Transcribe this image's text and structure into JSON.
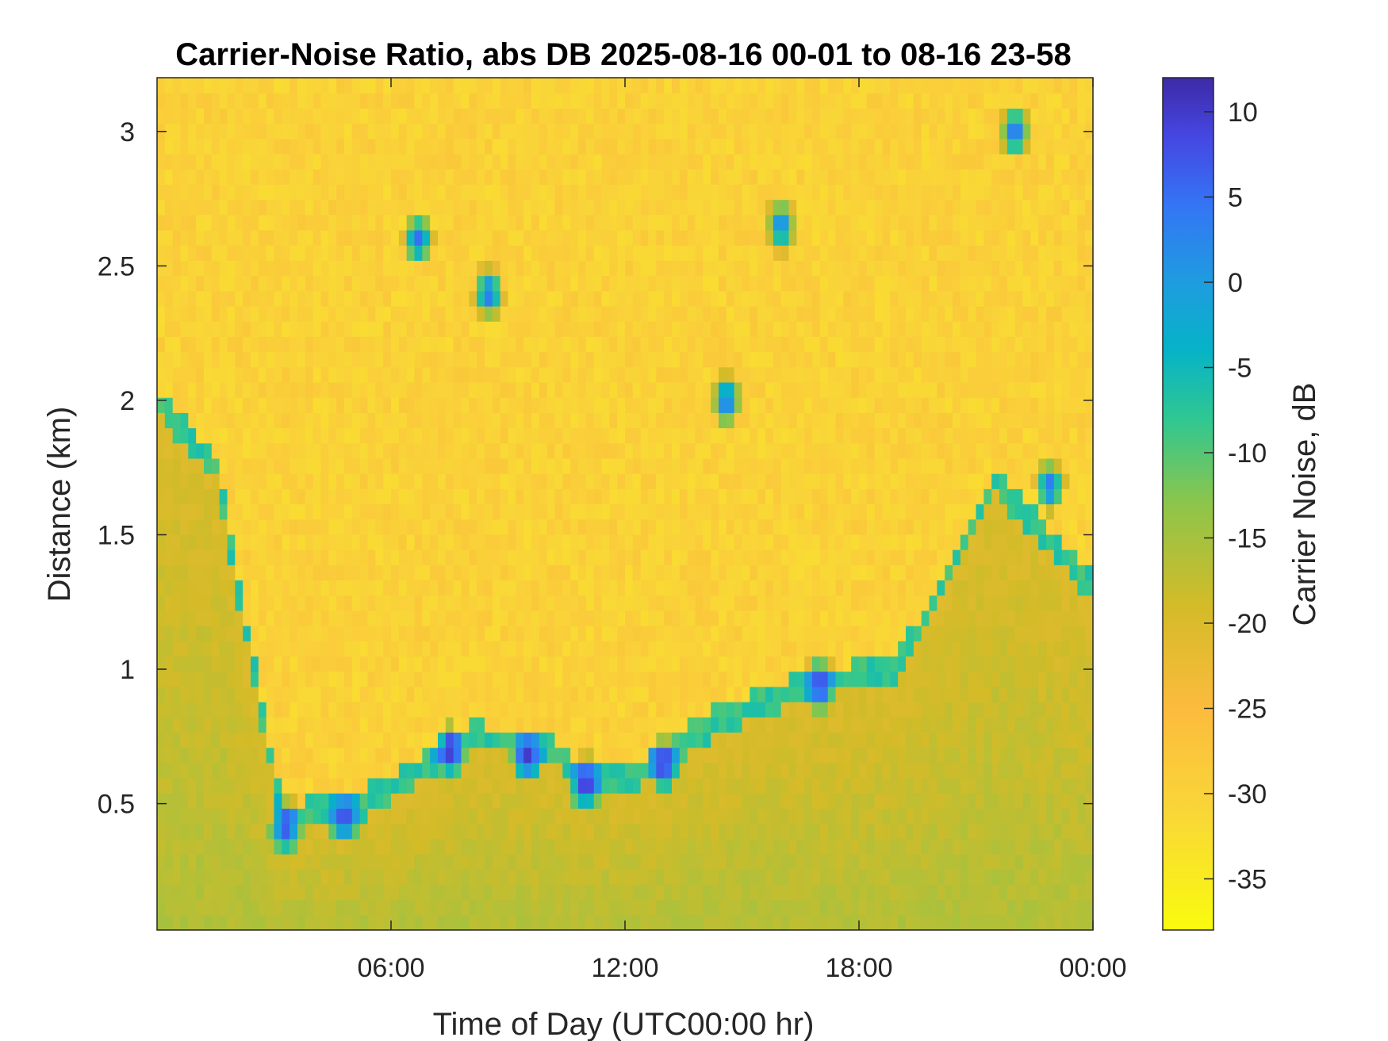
{
  "chart_data": {
    "type": "heatmap",
    "title": "Carrier-Noise Ratio, abs DB 2025-08-16 00-01 to 08-16 23-58",
    "xlabel": "Time of Day (UTC00:00 hr)",
    "ylabel": "Distance (km)",
    "colorbar_label": "Carrier Noise, dB",
    "xlim_hours": [
      0,
      24
    ],
    "ylim_km": [
      0.03,
      3.2
    ],
    "clim_db": [
      -38,
      12
    ],
    "x_ticks": [
      {
        "hour": 6,
        "label": "06:00"
      },
      {
        "hour": 12,
        "label": "12:00"
      },
      {
        "hour": 18,
        "label": "18:00"
      },
      {
        "hour": 24,
        "label": "00:00"
      }
    ],
    "y_ticks": [
      {
        "value": 0.5,
        "label": "0.5"
      },
      {
        "value": 1,
        "label": "1"
      },
      {
        "value": 1.5,
        "label": "1.5"
      },
      {
        "value": 2,
        "label": "2"
      },
      {
        "value": 2.5,
        "label": "2.5"
      },
      {
        "value": 3,
        "label": "3"
      }
    ],
    "colorbar_ticks": [
      {
        "value": 10,
        "label": "10"
      },
      {
        "value": 5,
        "label": "5"
      },
      {
        "value": 0,
        "label": "0"
      },
      {
        "value": -5,
        "label": "-5"
      },
      {
        "value": -10,
        "label": "-10"
      },
      {
        "value": -15,
        "label": "-15"
      },
      {
        "value": -20,
        "label": "-20"
      },
      {
        "value": -25,
        "label": "-25"
      },
      {
        "value": -30,
        "label": "-30"
      },
      {
        "value": -35,
        "label": "-35"
      }
    ],
    "colormap": "parula",
    "background_noise_db": -30,
    "boundary_layer_top_km": [
      {
        "hour": 0,
        "km": 2.0
      },
      {
        "hour": 1.5,
        "km": 1.75
      },
      {
        "hour": 3.2,
        "km": 0.45
      },
      {
        "hour": 5,
        "km": 0.48
      },
      {
        "hour": 6.5,
        "km": 0.6
      },
      {
        "hour": 8,
        "km": 0.75
      },
      {
        "hour": 10,
        "km": 0.72
      },
      {
        "hour": 11,
        "km": 0.58
      },
      {
        "hour": 12.5,
        "km": 0.62
      },
      {
        "hour": 14,
        "km": 0.78
      },
      {
        "hour": 15,
        "km": 0.85
      },
      {
        "hour": 17,
        "km": 0.95
      },
      {
        "hour": 19,
        "km": 1.0
      },
      {
        "hour": 21.5,
        "km": 1.7
      },
      {
        "hour": 24,
        "km": 1.3
      }
    ],
    "strong_return_features": [
      {
        "hour": 3.3,
        "km": 0.42,
        "db": 8
      },
      {
        "hour": 4.8,
        "km": 0.45,
        "db": 8
      },
      {
        "hour": 7.5,
        "km": 0.7,
        "db": 10
      },
      {
        "hour": 9.5,
        "km": 0.68,
        "db": 10
      },
      {
        "hour": 11,
        "km": 0.58,
        "db": 10
      },
      {
        "hour": 13,
        "km": 0.65,
        "db": 10
      },
      {
        "hour": 14.6,
        "km": 2.0,
        "db": 5
      },
      {
        "hour": 17.0,
        "km": 0.95,
        "db": 8
      },
      {
        "hour": 6.7,
        "km": 2.6,
        "db": 5
      },
      {
        "hour": 8.5,
        "km": 2.4,
        "db": 5
      },
      {
        "hour": 16.0,
        "km": 2.65,
        "db": 3
      },
      {
        "hour": 22.0,
        "km": 3.0,
        "db": 5
      },
      {
        "hour": 22.9,
        "km": 1.68,
        "db": 5
      }
    ]
  }
}
